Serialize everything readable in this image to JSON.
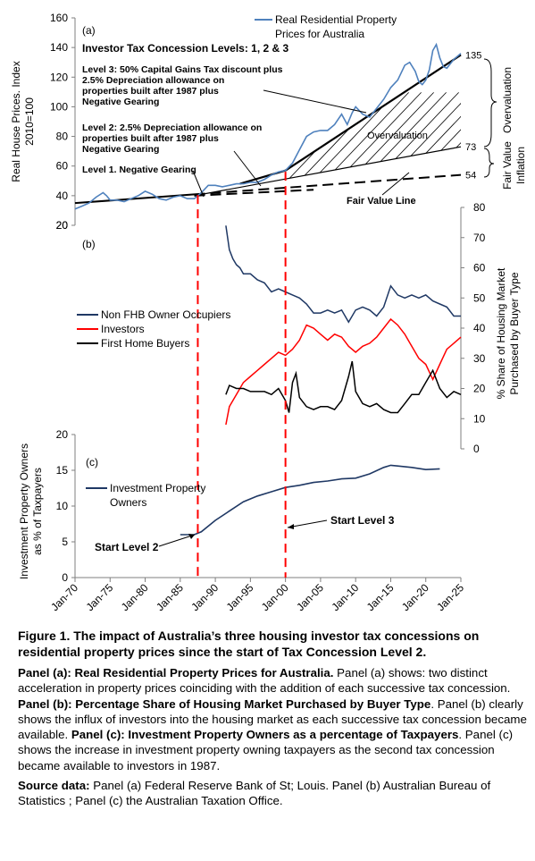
{
  "chart_data": [
    {
      "panel": "a",
      "panel_label": "(a)",
      "type": "line",
      "ylabel": "Real House Prices. Index 2010=100",
      "ylabel_lines": [
        "Real House Prices. Index",
        "2010=100"
      ],
      "ylim": [
        20,
        160
      ],
      "yticks": [
        20,
        40,
        60,
        80,
        100,
        120,
        140,
        160
      ],
      "series": [
        {
          "name": "Real Residential Property Prices for Australia",
          "color": "#4f81bd",
          "x": [
            1970.0,
            1971.0,
            1972.0,
            1973.0,
            1974.0,
            1974.5,
            1975.0,
            1976.0,
            1977.0,
            1978.0,
            1979.0,
            1980.0,
            1981.0,
            1982.0,
            1983.0,
            1984.0,
            1985.0,
            1986.0,
            1987.0,
            1988.0,
            1989.0,
            1990.0,
            1991.0,
            1992.0,
            1993.0,
            1994.0,
            1995.0,
            1996.0,
            1997.0,
            1998.0,
            1999.0,
            2000.0,
            2001.0,
            2002.0,
            2003.0,
            2004.0,
            2005.0,
            2006.0,
            2007.0,
            2008.0,
            2008.8,
            2009.5,
            2010.0,
            2011.0,
            2012.0,
            2013.0,
            2014.0,
            2015.0,
            2016.0,
            2017.0,
            2017.7,
            2018.5,
            2019.0,
            2019.5,
            2020.0,
            2020.5,
            2021.0,
            2021.5,
            2022.0,
            2022.5,
            2023.0,
            2024.0,
            2025.0
          ],
          "y": [
            31,
            33,
            35,
            39,
            42,
            40,
            37,
            37,
            36,
            38,
            40,
            43,
            41,
            38,
            37,
            39,
            40,
            38,
            38,
            42,
            47,
            47,
            46,
            47,
            48,
            48,
            49,
            49,
            51,
            54,
            56,
            57,
            62,
            71,
            80,
            83,
            84,
            84,
            88,
            95,
            88,
            96,
            100,
            95,
            93,
            99,
            105,
            113,
            118,
            128,
            130,
            124,
            117,
            115,
            118,
            125,
            138,
            142,
            133,
            127,
            126,
            132,
            136
          ]
        }
      ],
      "lines": {
        "fair_value": {
          "name": "Fair Value Line",
          "x": [
            1970,
            2025
          ],
          "y": [
            35,
            54
          ],
          "style": "solid to 1987, dashed after"
        },
        "level2_trend": {
          "x": [
            1987,
            2025
          ],
          "y": [
            40,
            73
          ]
        },
        "level3_trend": {
          "x": [
            2000,
            2025
          ],
          "y": [
            57,
            135
          ]
        },
        "level1_line": {
          "x": [
            1970,
            1987
          ],
          "y": [
            35,
            40
          ]
        }
      },
      "end_labels": [
        "135",
        "73",
        "54"
      ],
      "legend": "Real Residential Property Prices for Australia",
      "annotations": {
        "investor_levels": "Investor Tax Concession Levels: 1, 2 & 3",
        "level3": [
          "Level 3: 50% Capital Gains Tax discount plus",
          "2.5% Depreciation allowance on",
          "properties built after 1987 plus",
          "Negative Gearing"
        ],
        "level2": [
          "Level 2: 2.5% Depreciation allowance on",
          "properties built after 1987 plus",
          "Negative Gearing"
        ],
        "level1": "Level 1. Negative Gearing",
        "overvaluation": "Overvaluation",
        "fair_value_line": "Fair Value Line"
      },
      "right_labels": {
        "overvaluation": "Overvaluation",
        "fair_value": "Fair Value",
        "inflation": "Inflation"
      }
    },
    {
      "panel": "b",
      "panel_label": "(b)",
      "type": "line",
      "ylabel": "% Share of Housing Market Purchased by Buyer Type",
      "ylabel_lines": [
        "% Share of Housing Market",
        "Purchased by Buyer Type"
      ],
      "ylim": [
        0,
        80
      ],
      "yticks": [
        0,
        10,
        20,
        30,
        40,
        50,
        60,
        70,
        80
      ],
      "left_tick": "20",
      "series": [
        {
          "name": "Non FHB Owner Occupiers",
          "color": "#1f3864",
          "x": [
            1991.5,
            1992.0,
            1992.5,
            1993.0,
            1993.5,
            1994.0,
            1995.0,
            1996.0,
            1997.0,
            1998.0,
            1999.0,
            2000.0,
            2001.0,
            2002.0,
            2003.0,
            2004.0,
            2005.0,
            2006.0,
            2007.0,
            2008.0,
            2009.0,
            2010.0,
            2011.0,
            2012.0,
            2013.0,
            2014.0,
            2015.0,
            2016.0,
            2017.0,
            2018.0,
            2019.0,
            2020.0,
            2021.0,
            2022.0,
            2023.0,
            2024.0,
            2025.0
          ],
          "y": [
            74,
            66,
            63,
            61,
            60,
            58,
            58,
            56,
            55,
            52,
            53,
            52,
            51,
            50,
            48,
            45,
            45,
            46,
            45,
            46,
            42,
            46,
            47,
            46,
            44,
            47,
            54,
            51,
            50,
            51,
            50,
            51,
            49,
            48,
            47,
            44,
            44
          ]
        },
        {
          "name": "Investors",
          "color": "#ff0000",
          "x": [
            1991.5,
            1992.0,
            1993.0,
            1994.0,
            1995.0,
            1996.0,
            1997.0,
            1998.0,
            1999.0,
            2000.0,
            2001.0,
            2002.0,
            2003.0,
            2004.0,
            2005.0,
            2006.0,
            2007.0,
            2008.0,
            2009.0,
            2010.0,
            2011.0,
            2012.0,
            2013.0,
            2014.0,
            2015.0,
            2016.0,
            2017.0,
            2018.0,
            2019.0,
            2020.0,
            2021.0,
            2022.0,
            2023.0,
            2024.0,
            2025.0
          ],
          "y": [
            8,
            14,
            18,
            22,
            24,
            26,
            28,
            30,
            32,
            31,
            33,
            36,
            41,
            40,
            38,
            36,
            38,
            37,
            34,
            32,
            34,
            35,
            37,
            40,
            43,
            41,
            38,
            34,
            30,
            28,
            23,
            28,
            33,
            35,
            37
          ]
        },
        {
          "name": "First Home Buyers",
          "color": "#000000",
          "x": [
            1991.5,
            1992.0,
            1993.0,
            1994.0,
            1995.0,
            1996.0,
            1997.0,
            1998.0,
            1999.0,
            2000.0,
            2000.5,
            2001.0,
            2001.5,
            2002.0,
            2003.0,
            2004.0,
            2005.0,
            2006.0,
            2007.0,
            2008.0,
            2009.0,
            2009.5,
            2010.0,
            2011.0,
            2012.0,
            2013.0,
            2014.0,
            2015.0,
            2016.0,
            2017.0,
            2018.0,
            2019.0,
            2020.0,
            2021.0,
            2022.0,
            2023.0,
            2024.0,
            2025.0
          ],
          "y": [
            18,
            21,
            20,
            20,
            19,
            19,
            19,
            18,
            20,
            16,
            12,
            22,
            25,
            17,
            14,
            13,
            14,
            14,
            13,
            16,
            24,
            29,
            19,
            15,
            14,
            15,
            13,
            12,
            12,
            15,
            18,
            18,
            22,
            26,
            20,
            17,
            19,
            18
          ]
        }
      ],
      "legend": [
        "Non FHB Owner Occupiers",
        "Investors",
        "First Home Buyers"
      ]
    },
    {
      "panel": "c",
      "panel_label": "(c)",
      "type": "line",
      "ylabel": "Investment Property Owners as % of Taxpayers",
      "ylabel_lines": [
        "Investment Property Owners",
        "as % of Taxpayers"
      ],
      "ylim": [
        0,
        20
      ],
      "yticks": [
        0,
        5,
        10,
        15,
        20
      ],
      "ytick_labels": [
        "0",
        "5",
        "10",
        "15",
        "20"
      ],
      "xlim": [
        1970,
        2025
      ],
      "xticks": [
        "Jan-70",
        "Jan-75",
        "Jan-80",
        "Jan-85",
        "Jan-90",
        "Jan-95",
        "Jan-00",
        "Jan-05",
        "Jan-10",
        "Jan-15",
        "Jan-20",
        "Jan-25"
      ],
      "series": [
        {
          "name": "Investment Property Owners",
          "color": "#1f3864",
          "x": [
            1985,
            1987,
            1988,
            1990,
            1992,
            1994,
            1996,
            1998,
            2000,
            2002,
            2004,
            2006,
            2008,
            2010,
            2012,
            2014,
            2015,
            2016,
            2018,
            2020,
            2022
          ],
          "y": [
            6.0,
            6.0,
            6.4,
            8.0,
            9.3,
            10.6,
            11.4,
            12.0,
            12.6,
            12.9,
            13.3,
            13.5,
            13.8,
            13.9,
            14.5,
            15.4,
            15.7,
            15.6,
            15.4,
            15.1,
            15.2
          ]
        }
      ],
      "legend": [
        "Investment Property",
        "Owners"
      ],
      "annotations": {
        "start_level_2": "Start Level 2",
        "start_level_3": "Start Level 3"
      }
    }
  ],
  "event_lines": [
    {
      "x": 1987.5,
      "color": "#ff0000"
    },
    {
      "x": 2000.0,
      "color": "#ff0000"
    }
  ],
  "caption": {
    "title": "Figure 1. The impact of Australia’s three housing investor tax concessions on residential property prices since the start of Tax Concession Level 2.",
    "panel_a_head": "Panel (a): Real Residential Property Prices for Australia.",
    "panel_a_body": " Panel (a) shows: two distinct acceleration in property prices coinciding with the addition of each successive tax concession. ",
    "panel_b_head": "Panel (b): Percentage Share of Housing Market Purchased by Buyer Type",
    "panel_b_body": ". Panel (b) clearly shows the influx of investors into the housing market as each successive tax concession became available. ",
    "panel_c_head": "Panel (c): Investment Property Owners as a percentage of Taxpayers",
    "panel_c_body": ". Panel (c) shows the increase in investment property owning taxpayers as the second tax concession became available to investors in 1987.",
    "source_head": "Source data:",
    "source_body": " Panel (a) Federal Reserve Bank of St; Louis. Panel (b) Australian Bureau of Statistics ; Panel (c) the Australian Taxation Office."
  }
}
